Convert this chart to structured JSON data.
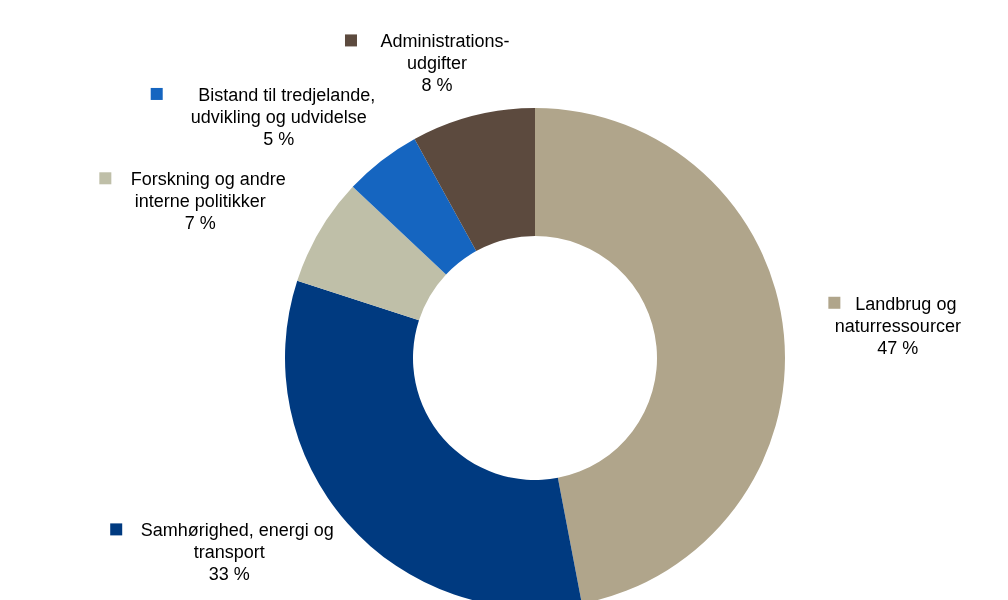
{
  "chart_data": {
    "type": "donut",
    "categories": [
      "Landbrug og\nnaturressourcer",
      "Samhørighed, energi og\ntransport",
      "Forskning og andre\ninterne politikker",
      "Bistand til tredjelande,\nudvikling og udvidelse",
      "Administrations-\nudgifter"
    ],
    "values": [
      47,
      33,
      7,
      5,
      8
    ],
    "colors": [
      "#b0a58b",
      "#003a80",
      "#bfbfa8",
      "#1565c0",
      "#5c4a3e"
    ],
    "value_labels": [
      "47 %",
      "33 %",
      "7 %",
      "5 %",
      "8 %"
    ],
    "legend": "left"
  }
}
